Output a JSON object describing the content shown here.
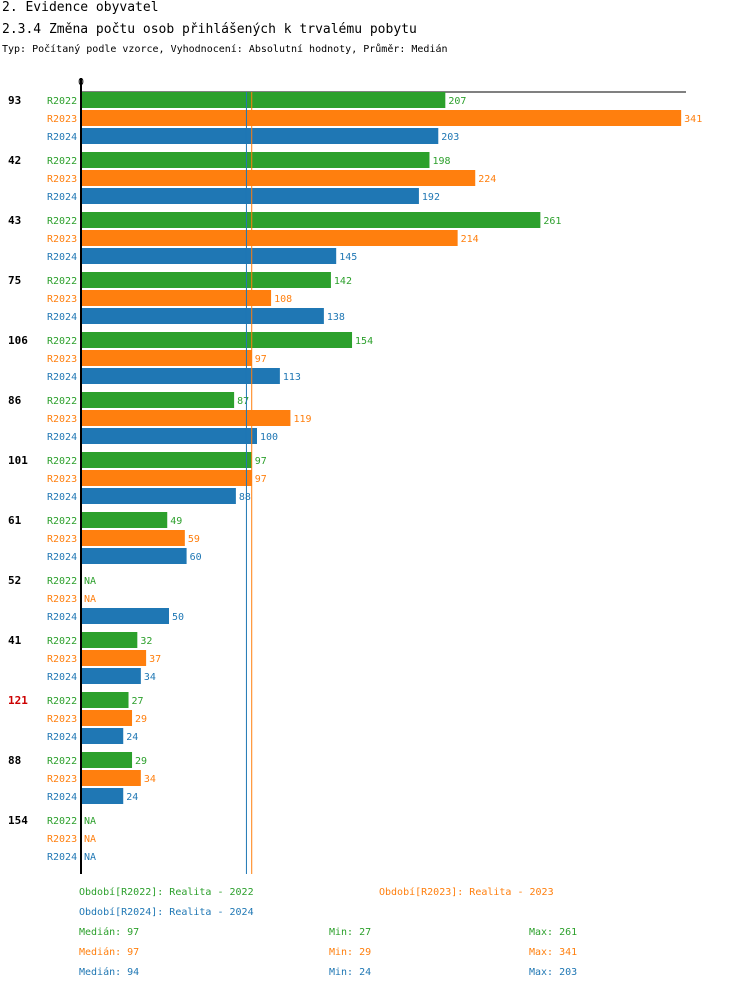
{
  "header": {
    "section": "2. Evidence obyvatel",
    "title": "2.3.4 Změna počtu osob přihlášených k trvalému pobytu",
    "subtitle": "Typ: Počítaný podle vzorce, Vyhodnocení: Absolutní hodnoty, Průměr: Medián"
  },
  "colors": {
    "R2022": "#2ca02c",
    "R2023": "#ff7f0e",
    "R2024": "#1f77b4",
    "highlight": "#cc0000"
  },
  "chart_data": {
    "type": "bar",
    "orientation": "horizontal",
    "axis_zero_label": "0",
    "xlim": [
      0,
      341
    ],
    "series_names": [
      "R2022",
      "R2023",
      "R2024"
    ],
    "na_label": "NA",
    "groups": [
      {
        "label": "93",
        "highlight": false,
        "values": [
          207,
          341,
          203
        ]
      },
      {
        "label": "42",
        "highlight": false,
        "values": [
          198,
          224,
          192
        ]
      },
      {
        "label": "43",
        "highlight": false,
        "values": [
          261,
          214,
          145
        ]
      },
      {
        "label": "75",
        "highlight": false,
        "values": [
          142,
          108,
          138
        ]
      },
      {
        "label": "106",
        "highlight": false,
        "values": [
          154,
          97,
          113
        ]
      },
      {
        "label": "86",
        "highlight": false,
        "values": [
          87,
          119,
          100
        ]
      },
      {
        "label": "101",
        "highlight": false,
        "values": [
          97,
          97,
          88
        ]
      },
      {
        "label": "61",
        "highlight": false,
        "values": [
          49,
          59,
          60
        ]
      },
      {
        "label": "52",
        "highlight": false,
        "values": [
          null,
          null,
          50
        ]
      },
      {
        "label": "41",
        "highlight": false,
        "values": [
          32,
          37,
          34
        ]
      },
      {
        "label": "121",
        "highlight": true,
        "values": [
          27,
          29,
          24
        ]
      },
      {
        "label": "88",
        "highlight": false,
        "values": [
          29,
          34,
          24
        ]
      },
      {
        "label": "154",
        "highlight": false,
        "values": [
          null,
          null,
          null
        ]
      }
    ],
    "median_lines": [
      {
        "series": "R2023",
        "value": 97
      },
      {
        "series": "R2024",
        "value": 94
      }
    ]
  },
  "legend": {
    "r2022": "Období[R2022]: Realita - 2022",
    "r2023": "Období[R2023]: Realita - 2023",
    "r2024": "Období[R2024]: Realita - 2024"
  },
  "stats": {
    "r2022": {
      "median": "Medián: 97",
      "min": "Min: 27",
      "max": "Max: 261"
    },
    "r2023": {
      "median": "Medián: 97",
      "min": "Min: 29",
      "max": "Max: 341"
    },
    "r2024": {
      "median": "Medián: 94",
      "min": "Min: 24",
      "max": "Max: 203"
    }
  }
}
